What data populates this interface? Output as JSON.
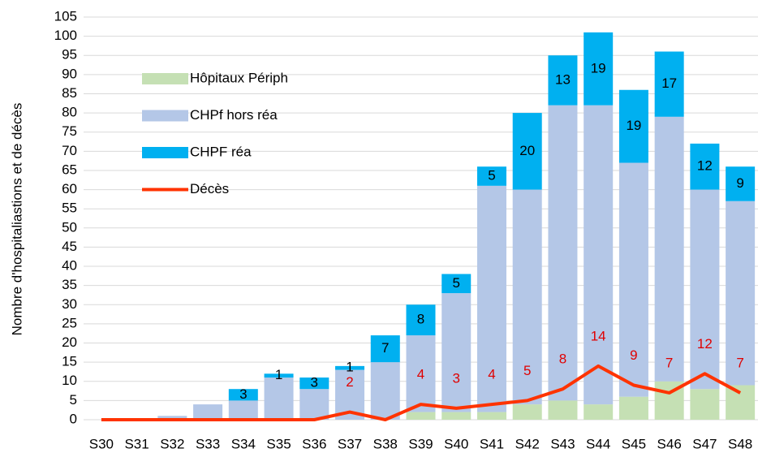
{
  "chart_data": {
    "type": "bar",
    "stacked": true,
    "y_label": "Nombre d'hospitaliastions et de décès",
    "categories": [
      "S30",
      "S31",
      "S32",
      "S33",
      "S34",
      "S35",
      "S36",
      "S37",
      "S38",
      "S39",
      "S40",
      "S41",
      "S42",
      "S43",
      "S44",
      "S45",
      "S46",
      "S47",
      "S48"
    ],
    "series": [
      {
        "name": "Hôpitaux Périph",
        "color": "#c5e0b4",
        "values": [
          0,
          0,
          0,
          0,
          0,
          0,
          0,
          0,
          0,
          2,
          2,
          2,
          4,
          5,
          4,
          6,
          10,
          8,
          9
        ]
      },
      {
        "name": "CHPf hors réa",
        "color": "#b4c7e7",
        "values": [
          0,
          0,
          1,
          4,
          5,
          11,
          8,
          13,
          15,
          20,
          31,
          59,
          56,
          77,
          78,
          61,
          69,
          52,
          48
        ]
      },
      {
        "name": "CHPF réa",
        "color": "#00b0f0",
        "values": [
          0,
          0,
          0,
          0,
          3,
          1,
          3,
          1,
          7,
          8,
          5,
          5,
          20,
          13,
          19,
          19,
          17,
          12,
          9
        ],
        "value_labels": [
          null,
          null,
          null,
          null,
          "3",
          "1",
          "3",
          "1",
          "7",
          "8",
          "5",
          "5",
          "20",
          "13",
          "19",
          "19",
          "17",
          "12",
          "9"
        ],
        "label_color": "#000000"
      },
      {
        "name": "Décès",
        "type": "line",
        "color": "#ff3300",
        "values": [
          0,
          0,
          0,
          0,
          0,
          0,
          0,
          2,
          0,
          4,
          3,
          4,
          5,
          8,
          14,
          9,
          7,
          12,
          7
        ],
        "value_labels": [
          null,
          null,
          null,
          null,
          null,
          null,
          null,
          "2",
          null,
          "4",
          "3",
          "4",
          "5",
          "8",
          "14",
          "9",
          "7",
          "12",
          "7"
        ],
        "label_color": "#e00000"
      }
    ],
    "ylim": [
      0,
      105
    ],
    "yticks": [
      0,
      5,
      10,
      15,
      20,
      25,
      30,
      35,
      40,
      45,
      50,
      55,
      60,
      65,
      70,
      75,
      80,
      85,
      90,
      95,
      100,
      105
    ],
    "grid": true,
    "legend": "upper left"
  }
}
